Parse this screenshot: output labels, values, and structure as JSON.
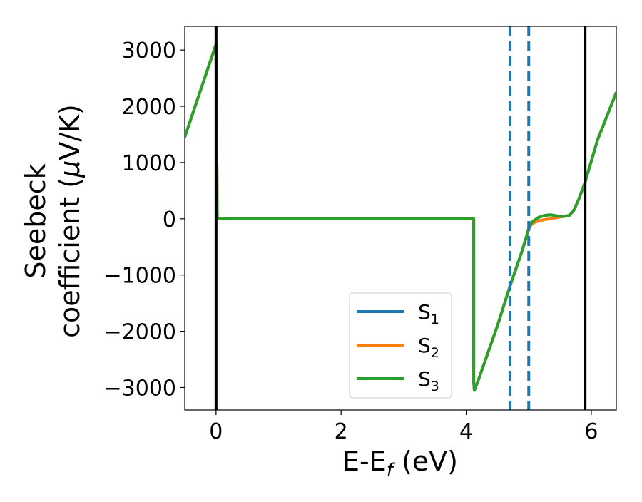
{
  "chart_data": {
    "type": "line",
    "title": "",
    "xlabel": "E-E",
    "xlabel_sub": "f",
    "xlabel_unit": " (eV)",
    "ylabel_line1": "Seebeck",
    "ylabel_line2": "coefficient  (",
    "ylabel_mu": "μ",
    "ylabel_unit": "V/K)",
    "xlim": [
      -0.5,
      6.4
    ],
    "ylim": [
      -3400,
      3420
    ],
    "xticks": [
      0,
      2,
      4,
      6
    ],
    "xtick_labels": [
      "0",
      "2",
      "4",
      "6"
    ],
    "yticks": [
      3000,
      2000,
      1000,
      0,
      -1000,
      -2000,
      -3000
    ],
    "ytick_labels": [
      "3000",
      "2000",
      "1000",
      "0",
      "−1000",
      "−2000",
      "−3000"
    ],
    "grid": false,
    "legend_position": "lower-right",
    "vlines_solid": [
      0.0,
      5.9
    ],
    "vlines_dashed": [
      4.7,
      5.0
    ],
    "vline_colors": {
      "solid": "#000000",
      "dashed": "#1f77b4"
    },
    "series": [
      {
        "name": "S",
        "name_sub": "1",
        "color": "#1f77b4",
        "x": [
          -0.5,
          0.0,
          0.02,
          4.12,
          4.12,
          4.13,
          4.2,
          4.5,
          4.7,
          4.9,
          5.0,
          5.05,
          5.15,
          5.25,
          5.35,
          5.45,
          5.55,
          5.65,
          5.72,
          5.8,
          5.9,
          6.1,
          6.4
        ],
        "y": [
          1450,
          3100,
          0,
          0,
          -2900,
          -3050,
          -2850,
          -1900,
          -1200,
          -550,
          -180,
          -60,
          20,
          60,
          70,
          50,
          40,
          60,
          150,
          350,
          650,
          1400,
          2250
        ]
      },
      {
        "name": "S",
        "name_sub": "2",
        "color": "#ff7f0e",
        "x": [
          -0.5,
          0.0,
          0.02,
          4.12,
          4.12,
          4.13,
          4.2,
          4.5,
          4.7,
          4.9,
          5.0,
          5.05,
          5.15,
          5.25,
          5.35,
          5.45,
          5.55,
          5.65,
          5.72,
          5.8,
          5.9,
          6.1,
          6.4
        ],
        "y": [
          1450,
          3100,
          0,
          0,
          -2900,
          -3050,
          -2850,
          -1900,
          -1200,
          -550,
          -180,
          -90,
          -40,
          -15,
          0,
          20,
          40,
          60,
          150,
          350,
          650,
          1400,
          2250
        ]
      },
      {
        "name": "S",
        "name_sub": "3",
        "color": "#2ca02c",
        "x": [
          -0.5,
          0.0,
          0.02,
          4.12,
          4.12,
          4.13,
          4.2,
          4.5,
          4.7,
          4.9,
          5.0,
          5.05,
          5.15,
          5.25,
          5.35,
          5.45,
          5.55,
          5.65,
          5.72,
          5.8,
          5.9,
          6.1,
          6.4
        ],
        "y": [
          1450,
          3100,
          0,
          0,
          -2900,
          -3050,
          -2850,
          -1900,
          -1200,
          -550,
          -180,
          -60,
          20,
          60,
          70,
          50,
          40,
          60,
          150,
          350,
          650,
          1400,
          2250
        ]
      }
    ]
  }
}
